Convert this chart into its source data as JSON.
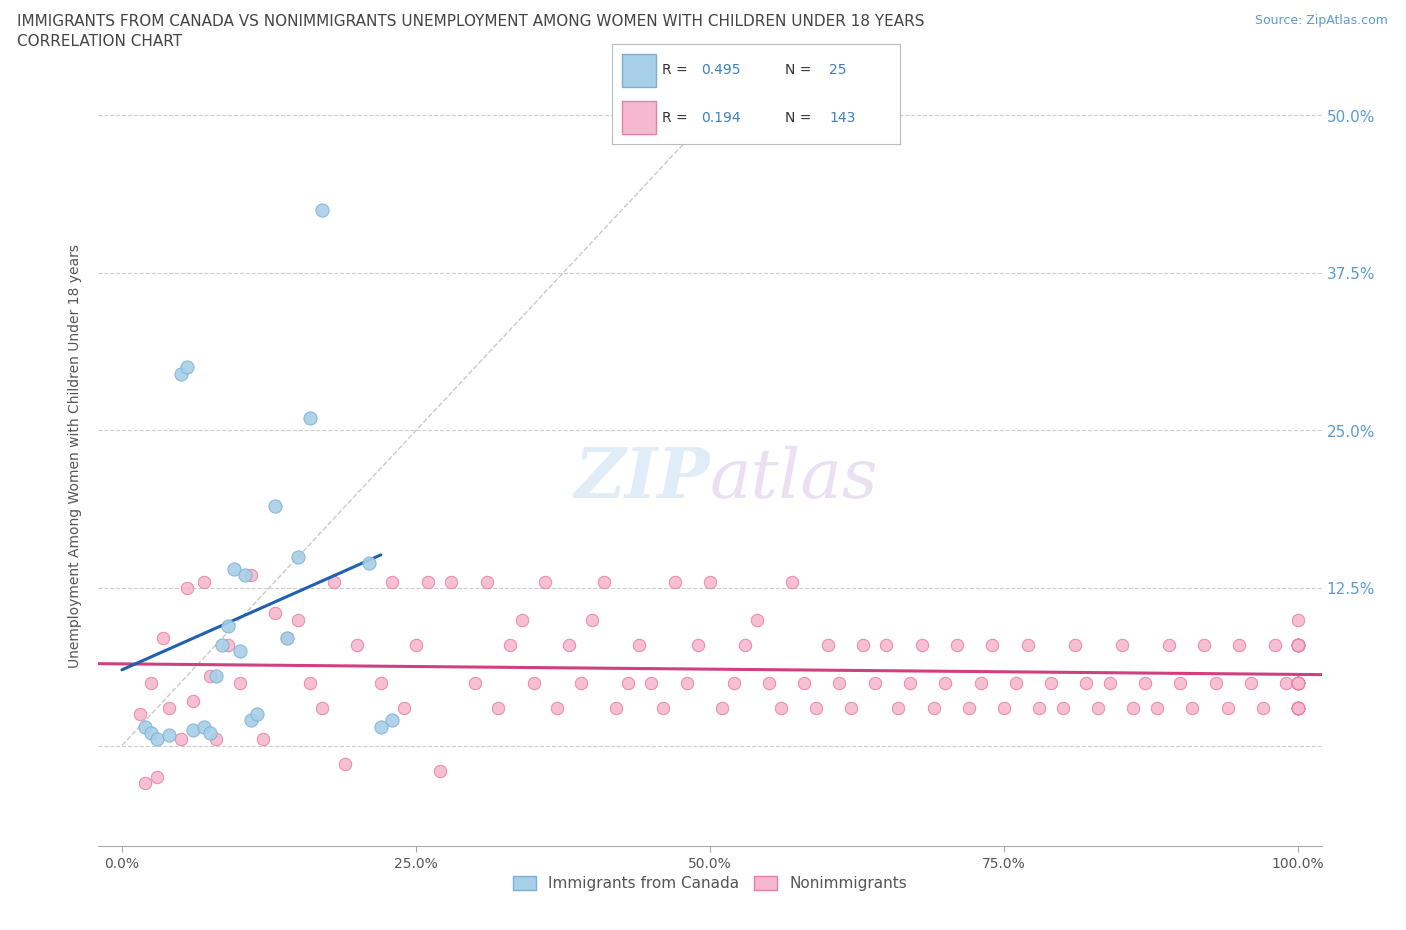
{
  "title_line1": "IMMIGRANTS FROM CANADA VS NONIMMIGRANTS UNEMPLOYMENT AMONG WOMEN WITH CHILDREN UNDER 18 YEARS",
  "title_line2": "CORRELATION CHART",
  "source_text": "Source: ZipAtlas.com",
  "ylabel": "Unemployment Among Women with Children Under 18 years",
  "watermark_zip": "ZIP",
  "watermark_atlas": "atlas",
  "blue_scatter_color": "#a8cfe8",
  "blue_edge_color": "#7ab0d4",
  "pink_scatter_color": "#f5b8ce",
  "pink_edge_color": "#e87da8",
  "blue_line_color": "#2060b0",
  "pink_line_color": "#d04080",
  "grid_color": "#cccccc",
  "background_color": "#ffffff",
  "title_color": "#444444",
  "tick_color_right": "#5b9bd5",
  "legend_border_color": "#bbbbbb",
  "blue_x": [
    2.0,
    2.5,
    3.0,
    4.0,
    5.0,
    5.5,
    6.0,
    7.0,
    7.5,
    8.0,
    8.5,
    9.0,
    9.5,
    10.0,
    10.5,
    11.0,
    11.5,
    13.0,
    14.0,
    15.0,
    16.0,
    17.0,
    21.0,
    22.0,
    23.0
  ],
  "blue_y": [
    1.5,
    1.0,
    0.5,
    0.8,
    29.5,
    30.0,
    1.2,
    1.5,
    1.0,
    5.5,
    8.0,
    9.5,
    14.0,
    7.5,
    13.5,
    2.0,
    2.5,
    19.0,
    8.5,
    15.0,
    26.0,
    42.5,
    14.5,
    1.5,
    2.0
  ],
  "pink_x": [
    1.5,
    2.0,
    2.5,
    3.0,
    3.5,
    4.0,
    5.0,
    5.5,
    6.0,
    7.0,
    7.5,
    8.0,
    9.0,
    10.0,
    11.0,
    12.0,
    13.0,
    14.0,
    15.0,
    16.0,
    17.0,
    18.0,
    19.0,
    20.0,
    22.0,
    23.0,
    24.0,
    25.0,
    26.0,
    27.0,
    28.0,
    30.0,
    31.0,
    32.0,
    33.0,
    34.0,
    35.0,
    36.0,
    37.0,
    38.0,
    39.0,
    40.0,
    41.0,
    42.0,
    43.0,
    44.0,
    45.0,
    46.0,
    47.0,
    48.0,
    49.0,
    50.0,
    51.0,
    52.0,
    53.0,
    54.0,
    55.0,
    56.0,
    57.0,
    58.0,
    59.0,
    60.0,
    61.0,
    62.0,
    63.0,
    64.0,
    65.0,
    66.0,
    67.0,
    68.0,
    69.0,
    70.0,
    71.0,
    72.0,
    73.0,
    74.0,
    75.0,
    76.0,
    77.0,
    78.0,
    79.0,
    80.0,
    81.0,
    82.0,
    83.0,
    84.0,
    85.0,
    86.0,
    87.0,
    88.0,
    89.0,
    90.0,
    91.0,
    92.0,
    93.0,
    94.0,
    95.0,
    96.0,
    97.0,
    98.0,
    99.0,
    100.0,
    100.0,
    100.0,
    100.0,
    100.0,
    100.0,
    100.0,
    100.0,
    100.0,
    100.0,
    100.0,
    100.0,
    100.0,
    100.0,
    100.0,
    100.0,
    100.0,
    100.0,
    100.0,
    100.0,
    100.0,
    100.0,
    100.0,
    100.0,
    100.0,
    100.0,
    100.0,
    100.0,
    100.0,
    100.0,
    100.0,
    100.0,
    100.0,
    100.0,
    100.0,
    100.0,
    100.0,
    100.0
  ],
  "pink_y": [
    2.5,
    -3.0,
    5.0,
    -2.5,
    8.5,
    3.0,
    0.5,
    12.5,
    3.5,
    13.0,
    5.5,
    0.5,
    8.0,
    5.0,
    13.5,
    0.5,
    10.5,
    8.5,
    10.0,
    5.0,
    3.0,
    13.0,
    -1.5,
    8.0,
    5.0,
    13.0,
    3.0,
    8.0,
    13.0,
    -2.0,
    13.0,
    5.0,
    13.0,
    3.0,
    8.0,
    10.0,
    5.0,
    13.0,
    3.0,
    8.0,
    5.0,
    10.0,
    13.0,
    3.0,
    5.0,
    8.0,
    5.0,
    3.0,
    13.0,
    5.0,
    8.0,
    13.0,
    3.0,
    5.0,
    8.0,
    10.0,
    5.0,
    3.0,
    13.0,
    5.0,
    3.0,
    8.0,
    5.0,
    3.0,
    8.0,
    5.0,
    8.0,
    3.0,
    5.0,
    8.0,
    3.0,
    5.0,
    8.0,
    3.0,
    5.0,
    8.0,
    3.0,
    5.0,
    8.0,
    3.0,
    5.0,
    3.0,
    8.0,
    5.0,
    3.0,
    5.0,
    8.0,
    3.0,
    5.0,
    3.0,
    8.0,
    5.0,
    3.0,
    8.0,
    5.0,
    3.0,
    8.0,
    5.0,
    3.0,
    8.0,
    5.0,
    8.0,
    5.0,
    8.0,
    3.0,
    8.0,
    5.0,
    3.0,
    8.0,
    5.0,
    3.0,
    8.0,
    5.0,
    3.0,
    8.0,
    5.0,
    3.0,
    8.0,
    5.0,
    3.0,
    8.0,
    5.0,
    3.0,
    8.0,
    5.0,
    3.0,
    8.0,
    5.0,
    3.0,
    8.0,
    5.0,
    3.0,
    8.0,
    5.0,
    3.0,
    8.0,
    5.0,
    10.0,
    8.0
  ],
  "xlim": [
    -2,
    102
  ],
  "ylim": [
    -8,
    54
  ],
  "ytick_vals": [
    0,
    12.5,
    25.0,
    37.5,
    50.0
  ],
  "xtick_vals": [
    0,
    25,
    50,
    75,
    100
  ],
  "xtick_labels": [
    "0.0%",
    "25.0%",
    "50.0%",
    "75.0%",
    "100.0%"
  ],
  "ytick_labels_right": [
    "",
    "12.5%",
    "25.0%",
    "37.5%",
    "50.0%"
  ]
}
